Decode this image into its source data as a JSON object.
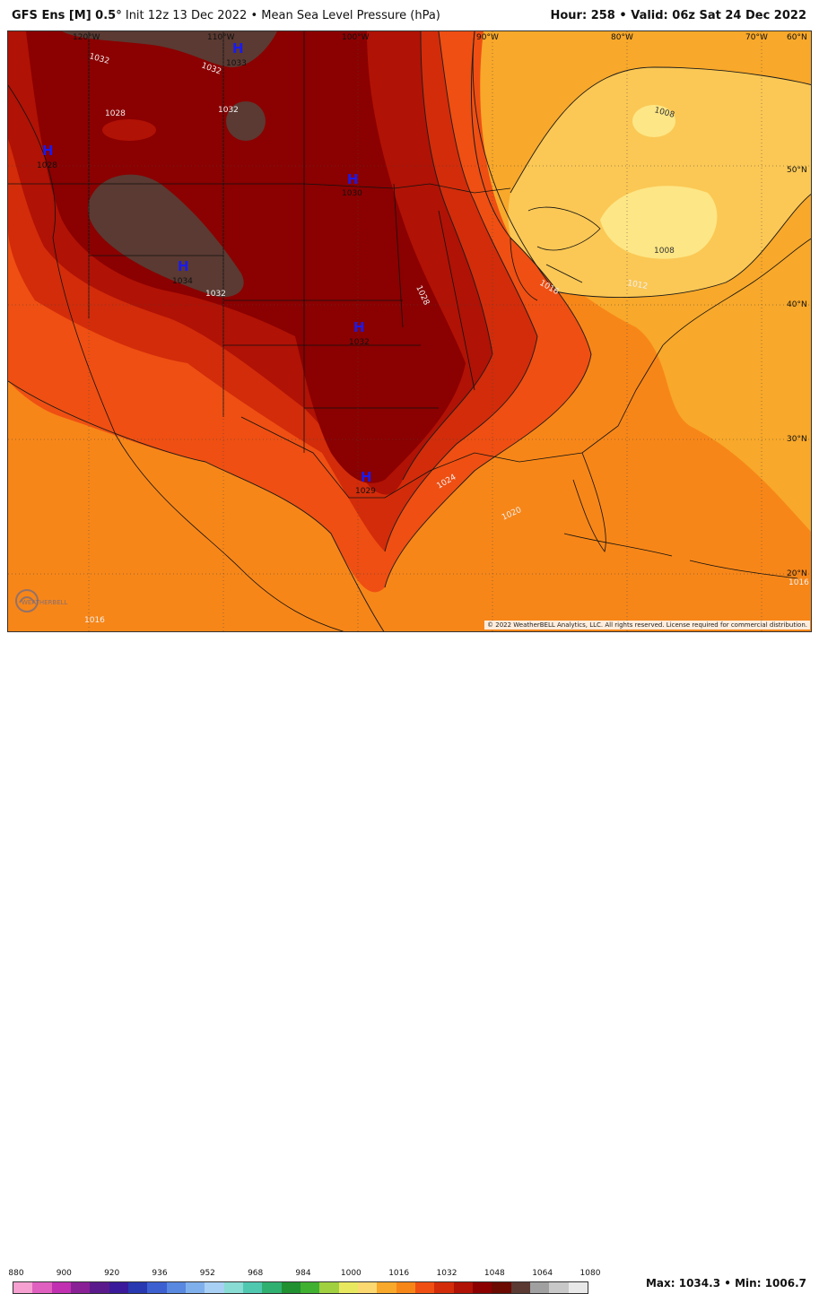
{
  "header": {
    "model": "GFS Ens [M] 0.5°",
    "init": "Init 12z 13 Dec 2022",
    "separator": "•",
    "product": "Mean Sea Level Pressure (hPa)",
    "hour_label": "Hour:",
    "hour_value": "258",
    "valid_label": "Valid:",
    "valid_value": "06z Sat 24 Dec 2022"
  },
  "map": {
    "lon_labels": [
      "120°W",
      "110°W",
      "100°W",
      "90°W",
      "80°W",
      "70°W",
      "60°N"
    ],
    "lat_labels": [
      "50°N",
      "40°N",
      "30°N",
      "20°N"
    ],
    "highs": [
      {
        "symbol": "H",
        "value": "1033"
      },
      {
        "symbol": "H",
        "value": "1028"
      },
      {
        "symbol": "H",
        "value": "1030"
      },
      {
        "symbol": "H",
        "value": "1034"
      },
      {
        "symbol": "H",
        "value": "1032"
      },
      {
        "symbol": "H",
        "value": "1029"
      }
    ],
    "isobar_labels": [
      "1032",
      "1032",
      "1032",
      "1028",
      "1032",
      "1028",
      "1024",
      "1020",
      "1016",
      "1016",
      "1016",
      "1012",
      "1008",
      "1008"
    ],
    "colors": {
      "p1034": "#5a3a32",
      "p1032": "#8b0000",
      "p1028": "#b01205",
      "p1024": "#d22c0a",
      "p1020": "#ef4f12",
      "p1016": "#f78618",
      "p1012": "#f8a82a",
      "p1008": "#fbc855",
      "p1004": "#fde685"
    }
  },
  "copyright": "© 2022 WeatherBELL Analytics, LLC. All rights reserved. License required for commercial distribution.",
  "logo_text": "WEATHERBELL",
  "scale": {
    "labels": [
      "880",
      "900",
      "920",
      "936",
      "952",
      "968",
      "984",
      "1000",
      "1016",
      "1032",
      "1048",
      "1064",
      "1080"
    ],
    "colors": [
      "#f5a0d0",
      "#e060c0",
      "#c030b0",
      "#8a2096",
      "#5a1a8c",
      "#3a1a9a",
      "#2838b0",
      "#3d60d0",
      "#5888e0",
      "#80b0ec",
      "#a8d0f4",
      "#88dcd4",
      "#50c8b0",
      "#30b070",
      "#209030",
      "#40b030",
      "#a0d040",
      "#e8e860",
      "#fcd870",
      "#f8a82a",
      "#f78618",
      "#ef4f12",
      "#d22c0a",
      "#b01205",
      "#8b0000",
      "#6a0a00",
      "#5a3a32",
      "#a0a0a0",
      "#c8c8c8",
      "#e8e8e8"
    ]
  },
  "stats": {
    "max_label": "Max:",
    "max_value": "1034.3",
    "sep": "•",
    "min_label": "Min:",
    "min_value": "1006.7"
  }
}
